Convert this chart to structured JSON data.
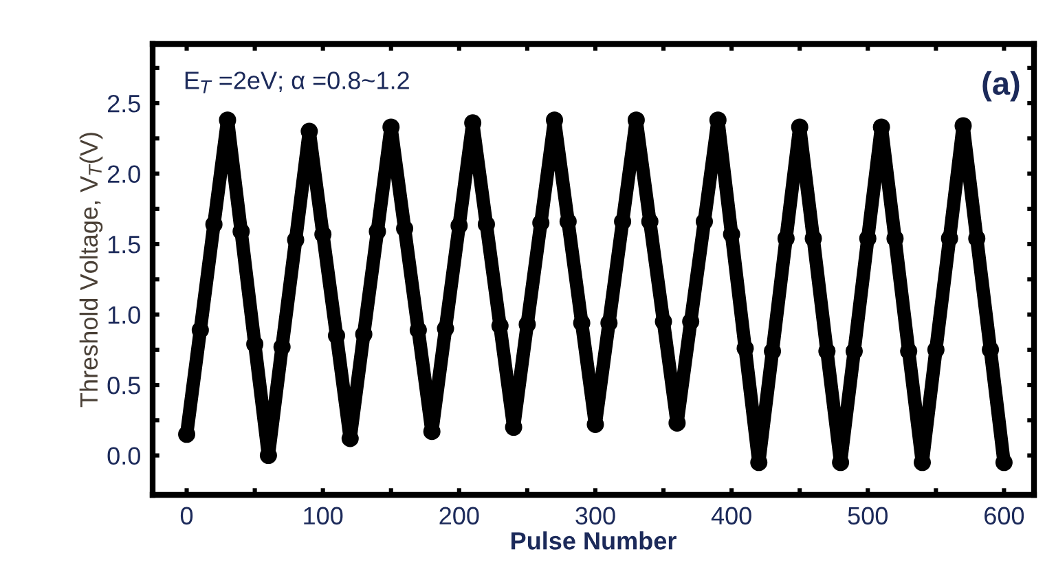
{
  "chart_data": {
    "type": "line",
    "xlabel": "Pulse Number",
    "ylabel": "Threshold Voltage, V$_{T}$(V)",
    "annotations": [
      "E$_{T}$ =2eV; α =0.8~1.2",
      "(a)"
    ],
    "x": [
      0,
      10,
      20,
      30,
      40,
      50,
      60,
      70,
      80,
      90,
      100,
      110,
      120,
      130,
      140,
      150,
      160,
      170,
      180,
      190,
      200,
      210,
      220,
      230,
      240,
      250,
      260,
      270,
      280,
      290,
      300,
      310,
      320,
      330,
      340,
      350,
      360,
      370,
      380,
      390,
      400,
      410,
      420,
      430,
      440,
      450,
      460,
      470,
      480,
      490,
      500,
      510,
      520,
      530,
      540,
      550,
      560,
      570,
      580,
      590,
      600
    ],
    "series": [
      {
        "color": "#000000",
        "values": [
          0.15,
          0.89,
          1.64,
          2.38,
          1.59,
          0.79,
          0.0,
          0.77,
          1.53,
          2.3,
          1.57,
          0.85,
          0.12,
          0.86,
          1.59,
          2.33,
          1.61,
          0.89,
          0.17,
          0.9,
          1.63,
          2.36,
          1.64,
          0.92,
          0.2,
          0.93,
          1.65,
          2.38,
          1.66,
          0.94,
          0.22,
          0.94,
          1.66,
          2.38,
          1.66,
          0.95,
          0.23,
          0.95,
          1.66,
          2.38,
          1.57,
          0.76,
          -0.05,
          0.74,
          1.54,
          2.33,
          1.54,
          0.74,
          -0.05,
          0.74,
          1.54,
          2.33,
          1.54,
          0.74,
          -0.05,
          0.75,
          1.54,
          2.34,
          1.54,
          0.75,
          -0.05
        ]
      }
    ],
    "xlim": [
      -25,
      622
    ],
    "ylim": [
      -0.28,
      2.92
    ],
    "xticks": [
      0,
      {
        "value": 50,
        "label": null
      },
      100,
      {
        "value": 150,
        "label": null
      },
      200,
      {
        "value": 250,
        "label": null
      },
      300,
      {
        "value": 350,
        "label": null
      },
      400,
      {
        "value": 450,
        "label": null
      },
      500,
      {
        "value": 550,
        "label": null
      },
      600
    ],
    "yticks": [
      {
        "value": 0,
        "label": "0.0"
      },
      {
        "value": 0.25,
        "label": null
      },
      {
        "value": 0.5,
        "label": "0.5"
      },
      {
        "value": 0.75,
        "label": null
      },
      {
        "value": 1,
        "label": "1.0"
      },
      {
        "value": 1.25,
        "label": null
      },
      {
        "value": 1.5,
        "label": "1.5"
      },
      {
        "value": 1.75,
        "label": null
      },
      {
        "value": 2,
        "label": "2.0"
      },
      {
        "value": 2.25,
        "label": null
      },
      {
        "value": 2.5,
        "label": "2.5"
      },
      {
        "value": 2.75,
        "label": null
      }
    ],
    "grid": false,
    "marker": "circle",
    "line_style": "solid"
  }
}
